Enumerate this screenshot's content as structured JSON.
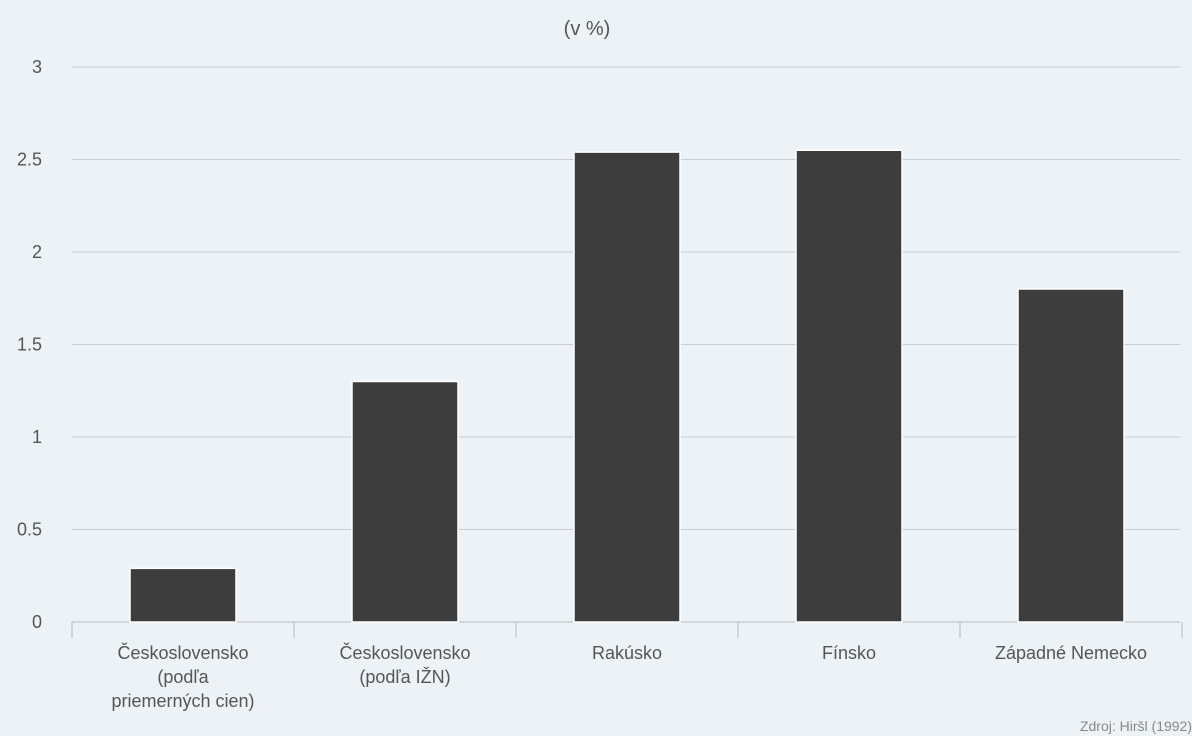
{
  "chart_data": {
    "type": "bar",
    "subtitle": "(v %)",
    "categories": [
      [
        "Československo",
        "(podľa",
        "priemerných cien)"
      ],
      [
        "Československo",
        "(podľa IŽN)"
      ],
      [
        "Rakúsko"
      ],
      [
        "Fínsko"
      ],
      [
        "Západné Nemecko"
      ]
    ],
    "values": [
      0.29,
      1.3,
      2.54,
      2.55,
      1.8
    ],
    "ylim": [
      0,
      3
    ],
    "yticks": [
      "0",
      "0.5",
      "1",
      "1.5",
      "2",
      "2.5",
      "3"
    ],
    "grid": true,
    "bar_color": "#3d3d3d",
    "source": "Zdroj: Hiršl (1992)"
  }
}
